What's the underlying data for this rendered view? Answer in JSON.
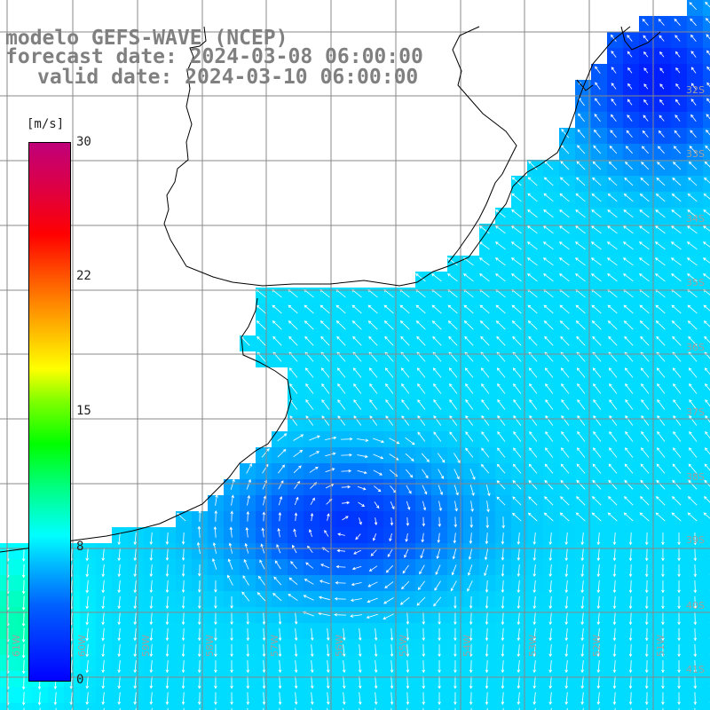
{
  "title": {
    "line1": "modelo GEFS-WAVE (NCEP)",
    "line2": "forecast date: 2024-03-08 06:00:00",
    "line3": "valid date: 2024-03-10 06:00:00"
  },
  "colorbar": {
    "units": "[m/s]",
    "ticks": [
      "30",
      "22",
      "15",
      "8",
      "0"
    ],
    "vmin": 0,
    "vmax": 30,
    "colors": [
      "#0000ff",
      "#00bfff",
      "#00ffff",
      "#00ff00",
      "#ffff00",
      "#ff0000",
      "#c0007a"
    ]
  },
  "grid": {
    "lat_labels": [
      "32S",
      "33S",
      "34S",
      "35S",
      "36S",
      "37S",
      "38S",
      "39S",
      "40S",
      "41S"
    ],
    "lon_labels": [
      "61W",
      "60W",
      "59W",
      "58W",
      "57W",
      "56W",
      "55W",
      "54W",
      "53W",
      "52W",
      "51W"
    ]
  },
  "colors": {
    "land": "#ffffff",
    "coastline": "#000000",
    "gridline": "#888888",
    "arrow": "#ffffff",
    "title": "#808080"
  }
}
